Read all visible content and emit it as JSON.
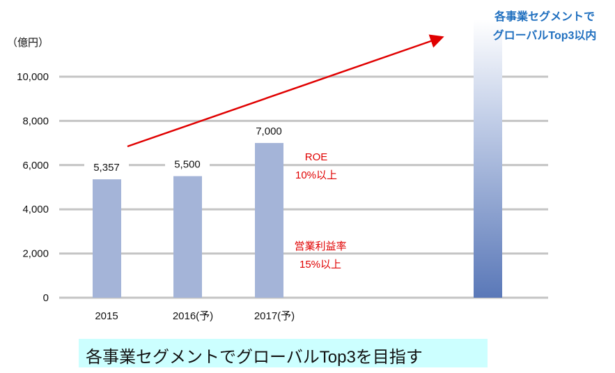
{
  "chart_data": {
    "type": "bar",
    "unit_label": "（億円）",
    "categories": [
      "2015",
      "2016(予)",
      "2017(予)"
    ],
    "values": [
      5357,
      5500,
      7000
    ],
    "data_labels": [
      "5,357",
      "5,500",
      "7,000"
    ],
    "ylim": [
      0,
      11000
    ],
    "yticks": [
      0,
      2000,
      4000,
      6000,
      8000,
      10000
    ],
    "ytick_labels": [
      "0",
      "2,000",
      "4,000",
      "6,000",
      "8,000",
      "10,000"
    ],
    "grid": true,
    "bar_color": "#a4b4d8",
    "goal_bar_color": "#5a78b8",
    "goal_label": [
      "各事業セグメントで",
      "グローバルTop3以内"
    ],
    "annotations": {
      "roe": [
        "ROE",
        "10%以上"
      ],
      "margin": [
        "営業利益率",
        "15%以上"
      ]
    },
    "arrow_color": "#e00000"
  },
  "banner": "各事業セグメントでグローバルTop3を目指す"
}
